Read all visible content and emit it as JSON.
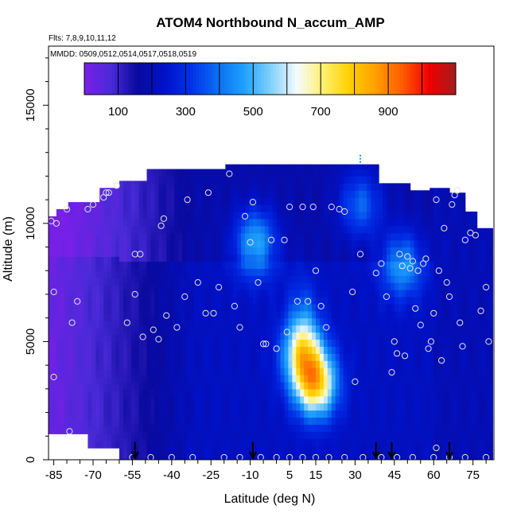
{
  "chart_data": {
    "type": "heatmap",
    "title": "ATOM4 Northbound N_accum_AMP",
    "subtitle_flights": "Flts: 7,8,9,10,11,12",
    "subtitle_dates": "MMDD: 0509,0512,0514,0517,0518,0519",
    "xlabel": "Latitude (deg N)",
    "ylabel": "Altitude (m)",
    "xlim": [
      -87,
      83
    ],
    "ylim": [
      0,
      17500
    ],
    "x_ticks": [
      -85,
      -70,
      -55,
      -40,
      -25,
      -10,
      5,
      15,
      30,
      45,
      60,
      75
    ],
    "y_ticks": [
      0,
      5000,
      10000,
      15000
    ],
    "colorbar": {
      "range": [
        0,
        1100
      ],
      "tick_values": [
        100,
        300,
        500,
        700,
        900
      ],
      "tick_labels": [
        "100",
        "300",
        "500",
        "700",
        "900"
      ],
      "colors": [
        "#7a1fe8",
        "#4a2ad8",
        "#0a0a9e",
        "#0012c8",
        "#0030e8",
        "#0a6cf0",
        "#1ea0ff",
        "#7fcff8",
        "#f4fbff",
        "#fff070",
        "#ffd000",
        "#ff9e00",
        "#ff5a00",
        "#ee0000",
        "#a51c1c"
      ]
    },
    "field_hotspots": [
      {
        "lat": 15,
        "alt": 3200,
        "value": 750
      },
      {
        "lat": 10,
        "alt": 4500,
        "value": 560
      },
      {
        "lat": 32,
        "alt": 10800,
        "value": 420
      },
      {
        "lat": 48,
        "alt": 8300,
        "value": 470
      },
      {
        "lat": -8,
        "alt": 9200,
        "value": 520
      }
    ],
    "sample_points": [
      [
        -86,
        10100
      ],
      [
        -85,
        7100
      ],
      [
        -85,
        3500
      ],
      [
        -84,
        10000
      ],
      [
        -80,
        10600
      ],
      [
        -78,
        5800
      ],
      [
        -76,
        6700
      ],
      [
        -72,
        10600
      ],
      [
        -70,
        10800
      ],
      [
        -66,
        11100
      ],
      [
        -65,
        11300
      ],
      [
        -64,
        11300
      ],
      [
        -61,
        11600
      ],
      [
        -57,
        5800
      ],
      [
        -54,
        7000
      ],
      [
        -54,
        8700
      ],
      [
        -52,
        8700
      ],
      [
        -51,
        5200
      ],
      [
        -47,
        5500
      ],
      [
        -45,
        5100
      ],
      [
        -44,
        9900
      ],
      [
        -43,
        10200
      ],
      [
        -42,
        6100
      ],
      [
        -38,
        5600
      ],
      [
        -35,
        6900
      ],
      [
        -34,
        11000
      ],
      [
        -30,
        7500
      ],
      [
        -27,
        6200
      ],
      [
        -26,
        11300
      ],
      [
        -24,
        6200
      ],
      [
        -22,
        7300
      ],
      [
        -18,
        12100
      ],
      [
        -16,
        6500
      ],
      [
        -14,
        5600
      ],
      [
        -12,
        10300
      ],
      [
        -10,
        9200
      ],
      [
        -9,
        10900
      ],
      [
        -7,
        7500
      ],
      [
        -5,
        4900
      ],
      [
        -4,
        4900
      ],
      [
        -2,
        9300
      ],
      [
        0,
        4700
      ],
      [
        3,
        9300
      ],
      [
        4,
        5400
      ],
      [
        5,
        10700
      ],
      [
        8,
        6700
      ],
      [
        10,
        10700
      ],
      [
        12,
        6700
      ],
      [
        14,
        10700
      ],
      [
        15,
        8000
      ],
      [
        17,
        6500
      ],
      [
        19,
        5600
      ],
      [
        21,
        10700
      ],
      [
        24,
        10600
      ],
      [
        26,
        10500
      ],
      [
        29,
        7100
      ],
      [
        30,
        3300
      ],
      [
        32,
        8700
      ],
      [
        38,
        7900
      ],
      [
        40,
        8300
      ],
      [
        42,
        6900
      ],
      [
        44,
        3700
      ],
      [
        45,
        5000
      ],
      [
        46,
        4500
      ],
      [
        47,
        8700
      ],
      [
        48,
        8200
      ],
      [
        49,
        4400
      ],
      [
        50,
        8600
      ],
      [
        51,
        8100
      ],
      [
        52,
        8400
      ],
      [
        53,
        6400
      ],
      [
        54,
        8000
      ],
      [
        55,
        5700
      ],
      [
        56,
        8300
      ],
      [
        57,
        8500
      ],
      [
        58,
        4700
      ],
      [
        59,
        5000
      ],
      [
        60,
        6200
      ],
      [
        61,
        11000
      ],
      [
        62,
        8000
      ],
      [
        63,
        4200
      ],
      [
        64,
        9800
      ],
      [
        65,
        7500
      ],
      [
        66,
        6900
      ],
      [
        67,
        10800
      ],
      [
        68,
        11200
      ],
      [
        69,
        11400
      ],
      [
        70,
        5800
      ],
      [
        71,
        4800
      ],
      [
        72,
        9300
      ],
      [
        74,
        9600
      ],
      [
        76,
        9500
      ],
      [
        78,
        6300
      ],
      [
        80,
        7300
      ],
      [
        81,
        5000
      ],
      [
        -79,
        1200
      ],
      [
        -55,
        100
      ],
      [
        -48,
        100
      ],
      [
        -40,
        100
      ],
      [
        -32,
        100
      ],
      [
        -20,
        100
      ],
      [
        -14,
        100
      ],
      [
        -6,
        100
      ],
      [
        0,
        100
      ],
      [
        5,
        100
      ],
      [
        10,
        100
      ],
      [
        15,
        100
      ],
      [
        20,
        100
      ],
      [
        26,
        100
      ],
      [
        33,
        100
      ],
      [
        40,
        100
      ],
      [
        46,
        100
      ],
      [
        52,
        100
      ],
      [
        60,
        100
      ],
      [
        61,
        500
      ],
      [
        66,
        100
      ],
      [
        72,
        100
      ],
      [
        80,
        100
      ]
    ],
    "arrows_lat": [
      -54,
      -9,
      38,
      44,
      66
    ],
    "marker": {
      "lat": 32,
      "alt": 12700
    }
  }
}
